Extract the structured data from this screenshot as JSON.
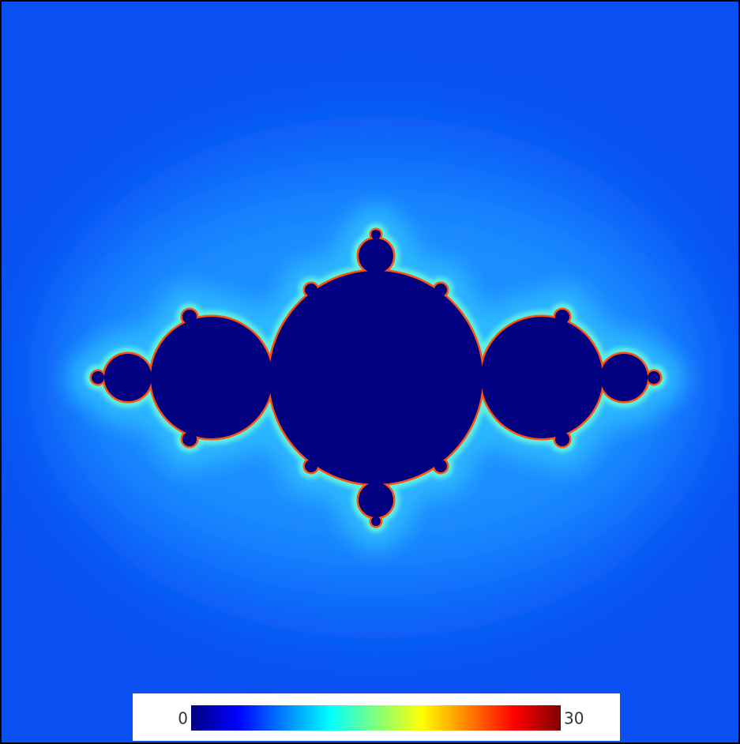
{
  "chart_data": {
    "type": "heatmap",
    "colormap": "jet",
    "clim": [
      0,
      30
    ],
    "cticks": [
      0,
      30
    ]
  }
}
